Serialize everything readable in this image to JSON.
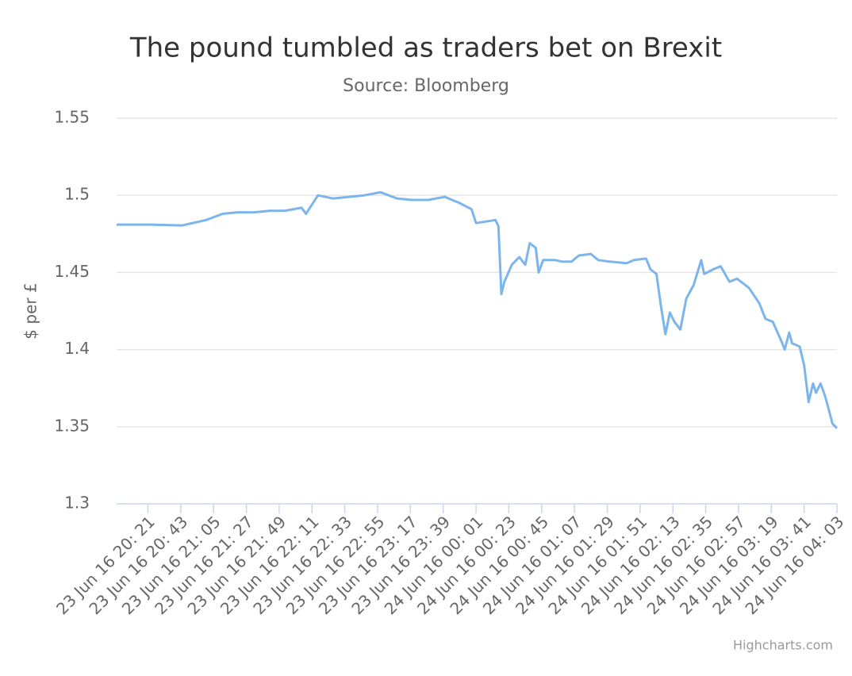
{
  "chart_data": {
    "type": "line",
    "title": "The pound tumbled as traders bet on Brexit",
    "subtitle": "Source: Bloomberg",
    "y_label": "$ per £",
    "credits": "Highcharts.com",
    "color": "#7cb5ec",
    "grid": true,
    "ylim": [
      1.3,
      1.55
    ],
    "yticks": [
      1.3,
      1.35,
      1.4,
      1.45,
      1.5,
      1.55
    ],
    "xlim": [
      "2016-06-23T20:00",
      "2016-06-24T04:03"
    ],
    "xticks": [
      {
        "value": "2016-06-23T20:21",
        "label": "23 Jun 16 20: 21"
      },
      {
        "value": "2016-06-23T20:43",
        "label": "23 Jun 16 20: 43"
      },
      {
        "value": "2016-06-23T21:05",
        "label": "23 Jun 16 21: 05"
      },
      {
        "value": "2016-06-23T21:27",
        "label": "23 Jun 16 21: 27"
      },
      {
        "value": "2016-06-23T21:49",
        "label": "23 Jun 16 21: 49"
      },
      {
        "value": "2016-06-23T22:11",
        "label": "23 Jun 16 22: 11"
      },
      {
        "value": "2016-06-23T22:33",
        "label": "23 Jun 16 22: 33"
      },
      {
        "value": "2016-06-23T22:55",
        "label": "23 Jun 16 22: 55"
      },
      {
        "value": "2016-06-23T23:17",
        "label": "23 Jun 16 23: 17"
      },
      {
        "value": "2016-06-23T23:39",
        "label": "23 Jun 16 23: 39"
      },
      {
        "value": "2016-06-24T00:01",
        "label": "24 Jun 16 00: 01"
      },
      {
        "value": "2016-06-24T00:23",
        "label": "24 Jun 16 00: 23"
      },
      {
        "value": "2016-06-24T00:45",
        "label": "24 Jun 16 00: 45"
      },
      {
        "value": "2016-06-24T01:07",
        "label": "24 Jun 16 01: 07"
      },
      {
        "value": "2016-06-24T01:29",
        "label": "24 Jun 16 01: 29"
      },
      {
        "value": "2016-06-24T01:51",
        "label": "24 Jun 16 01: 51"
      },
      {
        "value": "2016-06-24T02:13",
        "label": "24 Jun 16 02: 13"
      },
      {
        "value": "2016-06-24T02:35",
        "label": "24 Jun 16 02: 35"
      },
      {
        "value": "2016-06-24T02:57",
        "label": "24 Jun 16 02: 57"
      },
      {
        "value": "2016-06-24T03:19",
        "label": "24 Jun 16 03: 19"
      },
      {
        "value": "2016-06-24T03:41",
        "label": "24 Jun 16 03: 41"
      },
      {
        "value": "2016-06-24T04:03",
        "label": "24 Jun 16 04: 03"
      }
    ],
    "x": [
      "2016-06-23T20:00",
      "2016-06-23T20:23",
      "2016-06-23T20:44",
      "2016-06-23T21:00",
      "2016-06-23T21:11",
      "2016-06-23T21:21",
      "2016-06-23T21:32",
      "2016-06-23T21:43",
      "2016-06-23T21:53",
      "2016-06-23T22:04",
      "2016-06-23T22:07",
      "2016-06-23T22:15",
      "2016-06-23T22:25",
      "2016-06-23T22:36",
      "2016-06-23T22:46",
      "2016-06-23T22:57",
      "2016-06-23T23:08",
      "2016-06-23T23:18",
      "2016-06-23T23:29",
      "2016-06-23T23:40",
      "2016-06-23T23:50",
      "2016-06-23T23:58",
      "2016-06-24T00:01",
      "2016-06-24T00:14",
      "2016-06-24T00:16",
      "2016-06-24T00:18",
      "2016-06-24T00:20",
      "2016-06-24T00:25",
      "2016-06-24T00:30",
      "2016-06-24T00:34",
      "2016-06-24T00:37",
      "2016-06-24T00:41",
      "2016-06-24T00:43",
      "2016-06-24T00:46",
      "2016-06-24T00:54",
      "2016-06-24T00:59",
      "2016-06-24T01:05",
      "2016-06-24T01:10",
      "2016-06-24T01:18",
      "2016-06-24T01:23",
      "2016-06-24T01:31",
      "2016-06-24T01:42",
      "2016-06-24T01:47",
      "2016-06-24T01:55",
      "2016-06-24T01:58",
      "2016-06-24T02:02",
      "2016-06-24T02:05",
      "2016-06-24T02:08",
      "2016-06-24T02:11",
      "2016-06-24T02:14",
      "2016-06-24T02:18",
      "2016-06-24T02:22",
      "2016-06-24T02:27",
      "2016-06-24T02:32",
      "2016-06-24T02:34",
      "2016-06-24T02:40",
      "2016-06-24T02:45",
      "2016-06-24T02:51",
      "2016-06-24T02:56",
      "2016-06-24T03:04",
      "2016-06-24T03:11",
      "2016-06-24T03:15",
      "2016-06-24T03:20",
      "2016-06-24T03:26",
      "2016-06-24T03:28",
      "2016-06-24T03:31",
      "2016-06-24T03:33",
      "2016-06-24T03:38",
      "2016-06-24T03:41",
      "2016-06-24T03:44",
      "2016-06-24T03:47",
      "2016-06-24T03:49",
      "2016-06-24T03:52",
      "2016-06-24T03:55",
      "2016-06-24T03:57",
      "2016-06-24T04:00",
      "2016-06-24T04:03"
    ],
    "values": [
      1.481,
      1.481,
      1.4805,
      1.484,
      1.488,
      1.489,
      1.489,
      1.49,
      1.49,
      1.492,
      1.488,
      1.5,
      1.498,
      1.499,
      1.5,
      1.502,
      1.498,
      1.497,
      1.497,
      1.499,
      1.495,
      1.491,
      1.482,
      1.484,
      1.48,
      1.436,
      1.444,
      1.455,
      1.46,
      1.455,
      1.469,
      1.466,
      1.45,
      1.458,
      1.458,
      1.457,
      1.457,
      1.461,
      1.462,
      1.458,
      1.457,
      1.456,
      1.458,
      1.459,
      1.452,
      1.449,
      1.428,
      1.41,
      1.424,
      1.418,
      1.413,
      1.433,
      1.442,
      1.458,
      1.449,
      1.452,
      1.454,
      1.444,
      1.446,
      1.44,
      1.43,
      1.42,
      1.418,
      1.405,
      1.4,
      1.411,
      1.404,
      1.402,
      1.39,
      1.366,
      1.378,
      1.372,
      1.378,
      1.37,
      1.363,
      1.352,
      1.349
    ]
  }
}
